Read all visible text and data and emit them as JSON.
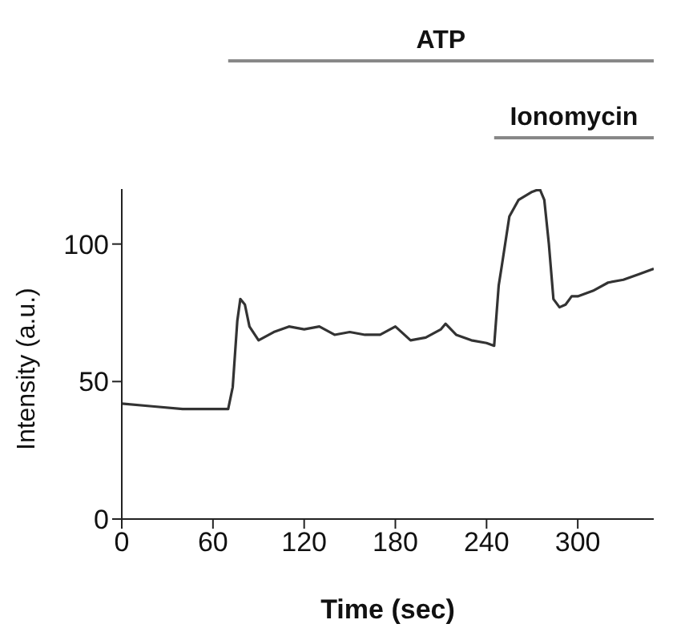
{
  "chart_data": {
    "type": "line",
    "xlabel": "Time (sec)",
    "ylabel": "Intensity (a.u.)",
    "x": [
      0,
      20,
      40,
      60,
      70,
      73,
      76,
      78,
      81,
      84,
      90,
      100,
      110,
      120,
      130,
      140,
      150,
      160,
      170,
      180,
      190,
      200,
      210,
      213,
      220,
      230,
      240,
      245,
      248,
      250,
      255,
      261,
      270,
      275,
      278,
      281,
      284,
      288,
      292,
      296,
      300,
      310,
      320,
      330,
      340,
      350
    ],
    "series": [
      {
        "color": "#333333",
        "values": [
          42,
          41,
          40,
          40,
          40,
          48,
          72,
          80,
          78,
          70,
          65,
          68,
          70,
          69,
          70,
          67,
          68,
          67,
          67,
          70,
          65,
          66,
          69,
          71,
          67,
          65,
          64,
          63,
          85,
          92,
          110,
          116,
          119,
          120,
          116,
          100,
          80,
          77,
          78,
          81,
          81,
          83,
          86,
          87,
          89,
          91
        ]
      }
    ],
    "xlim": [
      0,
      350
    ],
    "xticks": [
      0,
      60,
      120,
      180,
      240,
      300
    ],
    "ylim": [
      0,
      120
    ],
    "yticks": [
      0,
      50,
      100
    ],
    "grid": false,
    "legend": false,
    "marker": "none",
    "line_style": "solid",
    "annotations": [
      "ATP",
      "Ionomycin"
    ]
  }
}
